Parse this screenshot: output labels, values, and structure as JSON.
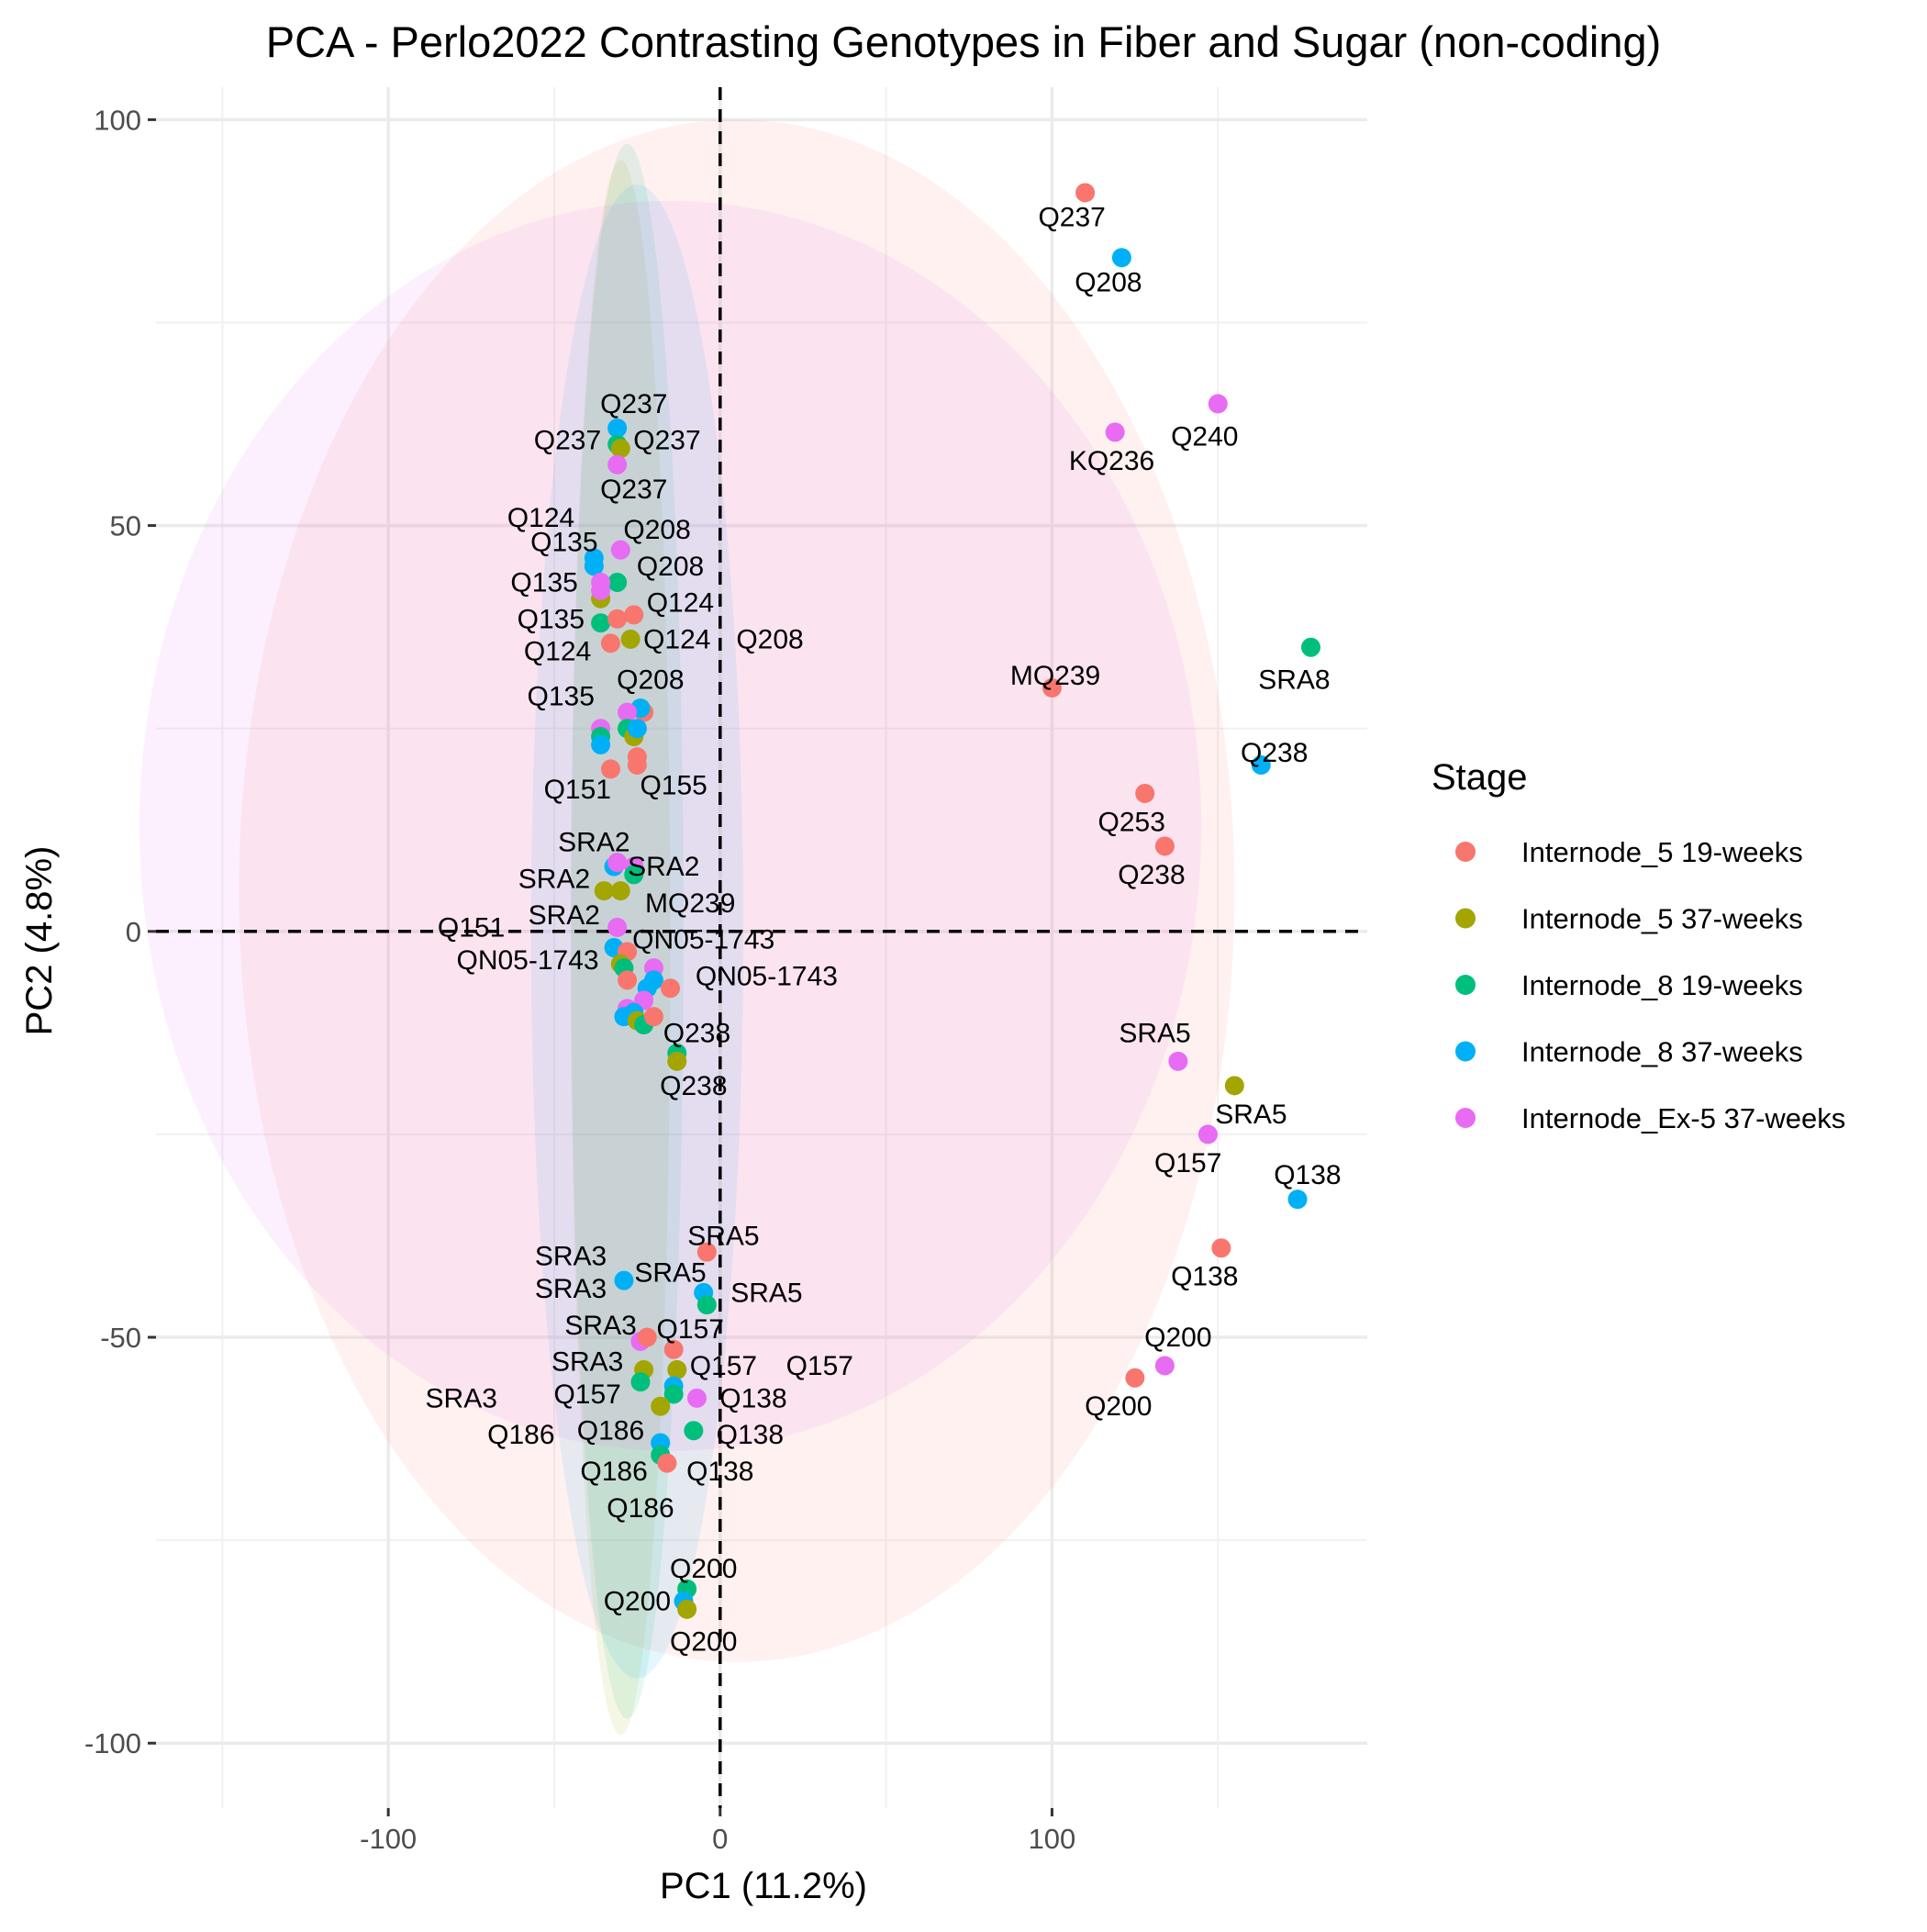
{
  "chart_data": {
    "type": "scatter",
    "title": "PCA - Perlo2022 Contrasting Genotypes in Fiber and Sugar (non-coding)",
    "xlabel": "PC1 (11.2%)",
    "ylabel": "PC2 (4.8%)",
    "xlim": [
      -170,
      195
    ],
    "ylim": [
      -108,
      104
    ],
    "xticks": [
      -100,
      0,
      100
    ],
    "xtick_labels": [
      "-100",
      "0",
      "100"
    ],
    "yticks": [
      -100,
      -50,
      0,
      50,
      100
    ],
    "ytick_labels": [
      "-100",
      "-50",
      "0",
      "50",
      "100"
    ],
    "grid": true,
    "reference_lines": {
      "x": 0,
      "y": 0,
      "style": "dashed"
    },
    "legend": {
      "title": "Stage",
      "position": "right",
      "entries": [
        {
          "label": "Internode_5 19-weeks",
          "color": "#F8766D"
        },
        {
          "label": "Internode_5 37-weeks",
          "color": "#A3A500"
        },
        {
          "label": "Internode_8 19-weeks",
          "color": "#00BF7D"
        },
        {
          "label": "Internode_8 37-weeks",
          "color": "#00B0F6"
        },
        {
          "label": "Internode_Ex-5 37-weeks",
          "color": "#E76BF3"
        }
      ]
    },
    "ellipses": [
      {
        "series": 0,
        "cx": 5,
        "cy": 5,
        "rx": 150,
        "ry": 95,
        "color": "#F8766D",
        "opacity": 0.1
      },
      {
        "series": 1,
        "cx": -30,
        "cy": -2,
        "rx": 15,
        "ry": 97,
        "color": "#A3A500",
        "opacity": 0.1
      },
      {
        "series": 2,
        "cx": -28,
        "cy": 0,
        "rx": 17,
        "ry": 97,
        "color": "#00BF7D",
        "opacity": 0.1
      },
      {
        "series": 3,
        "cx": -25,
        "cy": 0,
        "rx": 32,
        "ry": 92,
        "color": "#00B0F6",
        "opacity": 0.1
      },
      {
        "series": 4,
        "cx": -15,
        "cy": 13,
        "rx": 160,
        "ry": 77,
        "color": "#E76BF3",
        "opacity": 0.1
      }
    ],
    "points": [
      {
        "x": 110,
        "y": 91,
        "s": 0
      },
      {
        "x": 121,
        "y": 83,
        "s": 3
      },
      {
        "x": 150,
        "y": 65,
        "s": 4
      },
      {
        "x": 119,
        "y": 61.5,
        "s": 4
      },
      {
        "x": 178,
        "y": 35,
        "s": 2
      },
      {
        "x": 100,
        "y": 30,
        "s": 0
      },
      {
        "x": 163,
        "y": 20.5,
        "s": 3
      },
      {
        "x": 128,
        "y": 17,
        "s": 0
      },
      {
        "x": 134,
        "y": 10.5,
        "s": 0
      },
      {
        "x": 138,
        "y": -16,
        "s": 4
      },
      {
        "x": 155,
        "y": -19,
        "s": 1
      },
      {
        "x": 147,
        "y": -25,
        "s": 4
      },
      {
        "x": 174,
        "y": -33,
        "s": 3
      },
      {
        "x": 151,
        "y": -39,
        "s": 0
      },
      {
        "x": 134,
        "y": -53.5,
        "s": 4
      },
      {
        "x": 125,
        "y": -55,
        "s": 0
      },
      {
        "x": -31,
        "y": 62,
        "s": 3
      },
      {
        "x": -31,
        "y": 60,
        "s": 2
      },
      {
        "x": -30,
        "y": 59.5,
        "s": 1
      },
      {
        "x": -31,
        "y": 57.5,
        "s": 4
      },
      {
        "x": -38,
        "y": 46,
        "s": 3
      },
      {
        "x": -38,
        "y": 45,
        "s": 3
      },
      {
        "x": -30,
        "y": 47,
        "s": 4
      },
      {
        "x": -31,
        "y": 43,
        "s": 2
      },
      {
        "x": -36,
        "y": 43,
        "s": 4
      },
      {
        "x": -36,
        "y": 41,
        "s": 1
      },
      {
        "x": -36,
        "y": 42,
        "s": 4
      },
      {
        "x": -36,
        "y": 38,
        "s": 2
      },
      {
        "x": -31,
        "y": 38.5,
        "s": 0
      },
      {
        "x": -26,
        "y": 39,
        "s": 0
      },
      {
        "x": -27,
        "y": 36,
        "s": 1
      },
      {
        "x": -33,
        "y": 35.5,
        "s": 0
      },
      {
        "x": -24,
        "y": 27.5,
        "s": 1
      },
      {
        "x": -23,
        "y": 27,
        "s": 0
      },
      {
        "x": -24,
        "y": 27.5,
        "s": 3
      },
      {
        "x": -28,
        "y": 27,
        "s": 4
      },
      {
        "x": -28,
        "y": 25,
        "s": 2
      },
      {
        "x": -26,
        "y": 24,
        "s": 1
      },
      {
        "x": -25,
        "y": 25,
        "s": 3
      },
      {
        "x": -36,
        "y": 25,
        "s": 4
      },
      {
        "x": -36,
        "y": 24,
        "s": 2
      },
      {
        "x": -36,
        "y": 23,
        "s": 3
      },
      {
        "x": -25,
        "y": 21.5,
        "s": 0
      },
      {
        "x": -25,
        "y": 20.5,
        "s": 0
      },
      {
        "x": -33,
        "y": 20,
        "s": 0
      },
      {
        "x": -32,
        "y": 8,
        "s": 3
      },
      {
        "x": -31,
        "y": 8.5,
        "s": 4
      },
      {
        "x": -26,
        "y": 8,
        "s": 4
      },
      {
        "x": -26,
        "y": 7,
        "s": 2
      },
      {
        "x": -35,
        "y": 5,
        "s": 1
      },
      {
        "x": -30,
        "y": 5,
        "s": 1
      },
      {
        "x": -31,
        "y": 0.5,
        "s": 4
      },
      {
        "x": -32,
        "y": -2,
        "s": 3
      },
      {
        "x": -28,
        "y": -2.5,
        "s": 0
      },
      {
        "x": -30,
        "y": -4,
        "s": 1
      },
      {
        "x": -29,
        "y": -4.5,
        "s": 2
      },
      {
        "x": -20,
        "y": -4.5,
        "s": 4
      },
      {
        "x": -28,
        "y": -6,
        "s": 0
      },
      {
        "x": -20,
        "y": -6,
        "s": 3
      },
      {
        "x": -15,
        "y": -7,
        "s": 0
      },
      {
        "x": -22,
        "y": -7,
        "s": 3
      },
      {
        "x": -23,
        "y": -8.5,
        "s": 4
      },
      {
        "x": -28,
        "y": -9.5,
        "s": 4
      },
      {
        "x": -29,
        "y": -10.5,
        "s": 3
      },
      {
        "x": -26,
        "y": -10,
        "s": 3
      },
      {
        "x": -25,
        "y": -11,
        "s": 1
      },
      {
        "x": -23,
        "y": -11.5,
        "s": 2
      },
      {
        "x": -20,
        "y": -10.5,
        "s": 0
      },
      {
        "x": -13,
        "y": -15,
        "s": 2
      },
      {
        "x": -13,
        "y": -16,
        "s": 1
      },
      {
        "x": -4,
        "y": -39.5,
        "s": 0
      },
      {
        "x": -29,
        "y": -43,
        "s": 3
      },
      {
        "x": -5,
        "y": -44.5,
        "s": 3
      },
      {
        "x": -4,
        "y": -46,
        "s": 2
      },
      {
        "x": -24,
        "y": -50.5,
        "s": 4
      },
      {
        "x": -22,
        "y": -50,
        "s": 0
      },
      {
        "x": -14,
        "y": -51.5,
        "s": 0
      },
      {
        "x": -23,
        "y": -54,
        "s": 1
      },
      {
        "x": -13,
        "y": -54,
        "s": 1
      },
      {
        "x": -24,
        "y": -55.5,
        "s": 2
      },
      {
        "x": -14,
        "y": -56,
        "s": 3
      },
      {
        "x": -14,
        "y": -57,
        "s": 2
      },
      {
        "x": -7,
        "y": -57.5,
        "s": 4
      },
      {
        "x": -18,
        "y": -58.5,
        "s": 1
      },
      {
        "x": -8,
        "y": -61.5,
        "s": 2
      },
      {
        "x": -18,
        "y": -63,
        "s": 3
      },
      {
        "x": -18,
        "y": -64.5,
        "s": 2
      },
      {
        "x": -16,
        "y": -65.5,
        "s": 0
      },
      {
        "x": -10,
        "y": -81,
        "s": 2
      },
      {
        "x": -11,
        "y": -82.5,
        "s": 3
      },
      {
        "x": -10,
        "y": -83.5,
        "s": 1
      }
    ],
    "labels": [
      {
        "text": "Q237",
        "x": 106,
        "y": 88
      },
      {
        "text": "Q208",
        "x": 117,
        "y": 80
      },
      {
        "text": "Q240",
        "x": 146,
        "y": 61
      },
      {
        "text": "KQ236",
        "x": 118,
        "y": 58
      },
      {
        "text": "SRA8",
        "x": 173,
        "y": 31
      },
      {
        "text": "MQ239",
        "x": 101,
        "y": 31.5
      },
      {
        "text": "Q238",
        "x": 167,
        "y": 22
      },
      {
        "text": "Q253",
        "x": 124,
        "y": 13.5
      },
      {
        "text": "Q238",
        "x": 130,
        "y": 7
      },
      {
        "text": "SRA5",
        "x": 131,
        "y": -12.5
      },
      {
        "text": "SRA5",
        "x": 160,
        "y": -22.5
      },
      {
        "text": "Q157",
        "x": 141,
        "y": -28.5
      },
      {
        "text": "Q138",
        "x": 177,
        "y": -30
      },
      {
        "text": "Q138",
        "x": 146,
        "y": -42.5
      },
      {
        "text": "Q200",
        "x": 138,
        "y": -50
      },
      {
        "text": "Q200",
        "x": 120,
        "y": -58.5
      },
      {
        "text": "Q237",
        "x": -26,
        "y": 65
      },
      {
        "text": "Q237",
        "x": -46,
        "y": 60.5
      },
      {
        "text": "Q237",
        "x": -16,
        "y": 60.5
      },
      {
        "text": "Q237",
        "x": -26,
        "y": 54.5
      },
      {
        "text": "Q124",
        "x": -54,
        "y": 51
      },
      {
        "text": "Q135",
        "x": -47,
        "y": 48
      },
      {
        "text": "Q208",
        "x": -19,
        "y": 49.5
      },
      {
        "text": "Q135",
        "x": -53,
        "y": 43
      },
      {
        "text": "Q208",
        "x": -15,
        "y": 45
      },
      {
        "text": "Q124",
        "x": -12,
        "y": 40.5
      },
      {
        "text": "Q135",
        "x": -51,
        "y": 38.5
      },
      {
        "text": "Q124",
        "x": -13,
        "y": 36
      },
      {
        "text": "Q208",
        "x": 15,
        "y": 36
      },
      {
        "text": "Q124",
        "x": -49,
        "y": 34.5
      },
      {
        "text": "Q208",
        "x": -21,
        "y": 31
      },
      {
        "text": "Q135",
        "x": -48,
        "y": 29
      },
      {
        "text": "Q151",
        "x": -43,
        "y": 17.5
      },
      {
        "text": "Q155",
        "x": -14,
        "y": 18
      },
      {
        "text": "SRA2",
        "x": -38,
        "y": 11
      },
      {
        "text": "SRA2",
        "x": -17,
        "y": 8
      },
      {
        "text": "SRA2",
        "x": -50,
        "y": 6.5
      },
      {
        "text": "MQ239",
        "x": -9,
        "y": 3.5
      },
      {
        "text": "SRA2",
        "x": -47,
        "y": 2
      },
      {
        "text": "Q151",
        "x": -75,
        "y": 0.5
      },
      {
        "text": "QN05-1743",
        "x": -5,
        "y": -1
      },
      {
        "text": "QN05-1743",
        "x": -58,
        "y": -3.5
      },
      {
        "text": "QN05-1743",
        "x": 14,
        "y": -5.5
      },
      {
        "text": "Q238",
        "x": -7,
        "y": -12.5
      },
      {
        "text": "Q238",
        "x": -8,
        "y": -19
      },
      {
        "text": "SRA5",
        "x": 1,
        "y": -37.5
      },
      {
        "text": "SRA3",
        "x": -45,
        "y": -40
      },
      {
        "text": "SRA5",
        "x": -15,
        "y": -42
      },
      {
        "text": "SRA3",
        "x": -45,
        "y": -44
      },
      {
        "text": "SRA5",
        "x": 14,
        "y": -44.5
      },
      {
        "text": "SRA3",
        "x": -36,
        "y": -48.5
      },
      {
        "text": "Q157",
        "x": -9,
        "y": -49
      },
      {
        "text": "SRA3",
        "x": -40,
        "y": -53
      },
      {
        "text": "Q157",
        "x": 1,
        "y": -53.5
      },
      {
        "text": "Q157",
        "x": 30,
        "y": -53.5
      },
      {
        "text": "SRA3",
        "x": -78,
        "y": -57.5
      },
      {
        "text": "Q157",
        "x": -40,
        "y": -57
      },
      {
        "text": "Q138",
        "x": 10,
        "y": -57.5
      },
      {
        "text": "Q186",
        "x": -60,
        "y": -62
      },
      {
        "text": "Q186",
        "x": -33,
        "y": -61.5
      },
      {
        "text": "Q138",
        "x": 9,
        "y": -62
      },
      {
        "text": "Q186",
        "x": -32,
        "y": -66.5
      },
      {
        "text": "Q138",
        "x": 0,
        "y": -66.5
      },
      {
        "text": "Q186",
        "x": -24,
        "y": -71
      },
      {
        "text": "Q200",
        "x": -5,
        "y": -78.5
      },
      {
        "text": "Q200",
        "x": -25,
        "y": -82.5
      },
      {
        "text": "Q200",
        "x": -5,
        "y": -87.5
      }
    ]
  }
}
